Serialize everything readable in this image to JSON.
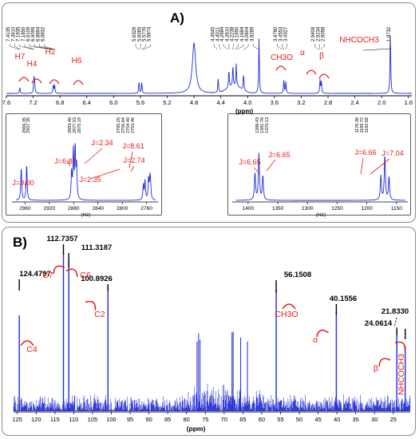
{
  "panel_labels": {
    "A": "A)",
    "B": "B)"
  },
  "colors": {
    "spectrum": "#1f2bd8",
    "annotation": "#e8191b",
    "text": "#000000"
  },
  "chart_data": [
    {
      "id": "A-main",
      "type": "line",
      "title": "A)",
      "xlabel": "(ppm)",
      "xlim": [
        7.6,
        1.55
      ],
      "x_ticks": [
        "7.6",
        "7.2",
        "6.8",
        "6.4",
        "6.0",
        "5.6",
        "5.2",
        "4.8",
        "4.4",
        "4.0",
        "3.6",
        "3.2",
        "2.8",
        "2.4",
        "2.0",
        "1.6"
      ],
      "peak_labels": [
        "7.4135",
        "7.3910",
        "7.1935",
        "7.1850",
        "6.9109",
        "6.9099",
        "6.8894",
        "6.8832",
        "5.6329",
        "5.6065",
        "5.5776",
        "5.5674",
        "4.4545",
        "4.4011",
        "4.2884",
        "4.2610",
        "4.2238",
        "4.1950",
        "4.1684",
        "4.0604",
        "3.8289",
        "3.4780",
        "3.4553",
        "3.4327",
        "2.9409",
        "2.9234",
        "2.9058",
        "1.8732"
      ],
      "peaks": [
        {
          "ppm": 7.4,
          "h": 0.1
        },
        {
          "ppm": 7.19,
          "h": 0.22
        },
        {
          "ppm": 7.18,
          "h": 0.2
        },
        {
          "ppm": 6.9,
          "h": 0.14
        },
        {
          "ppm": 6.88,
          "h": 0.13
        },
        {
          "ppm": 5.62,
          "h": 0.2
        },
        {
          "ppm": 5.58,
          "h": 0.18
        },
        {
          "ppm": 4.8,
          "h": 0.82
        },
        {
          "ppm": 4.44,
          "h": 0.24
        },
        {
          "ppm": 4.28,
          "h": 0.3
        },
        {
          "ppm": 4.22,
          "h": 0.34
        },
        {
          "ppm": 4.17,
          "h": 0.36
        },
        {
          "ppm": 4.06,
          "h": 0.28
        },
        {
          "ppm": 3.83,
          "h": 0.9
        },
        {
          "ppm": 3.46,
          "h": 0.22
        },
        {
          "ppm": 3.43,
          "h": 0.2
        },
        {
          "ppm": 2.92,
          "h": 0.22
        },
        {
          "ppm": 2.9,
          "h": 0.2
        },
        {
          "ppm": 1.87,
          "h": 1.0
        }
      ],
      "annotations": [
        "H7",
        "H4",
        "H2",
        "H6",
        "CH3O",
        "α",
        "β",
        "NHCOCH3"
      ]
    },
    {
      "id": "A-inset-left",
      "type": "line",
      "xlabel": "(Hz)",
      "x_ticks": [
        "2960",
        "2920",
        "2880",
        "2840",
        "2800",
        "2760"
      ],
      "peak_labels": [
        "2966.35",
        "2957.35",
        "2883.40",
        "2877.53",
        "2875.19",
        "2765.25",
        "2756.64",
        "2754.40",
        "2753.46"
      ],
      "annotations": [
        "J=9.00",
        "J=6.87",
        "J=2.34",
        "J=8.61",
        "J=2.35",
        "J=2.74"
      ]
    },
    {
      "id": "A-inset-right",
      "type": "line",
      "xlabel": "(Hz)",
      "x_ticks": [
        "1400",
        "1350",
        "1300",
        "1250",
        "1200",
        "1150"
      ],
      "peak_labels": [
        "1388.43",
        "1381.78",
        "1375.13",
        "1176.38",
        "1169.72",
        "1162.68"
      ],
      "annotations": [
        "J=6.65",
        "J=6.65",
        "J=6.66",
        "J=7.04"
      ]
    },
    {
      "id": "B",
      "type": "line",
      "title": "B)",
      "xlabel": "(ppm)",
      "xlim": [
        126,
        20.5
      ],
      "x_ticks": [
        "125",
        "120",
        "115",
        "110",
        "105",
        "100",
        "95",
        "90",
        "85",
        "80",
        "75",
        "70",
        "65",
        "60",
        "55",
        "50",
        "45",
        "40",
        "35",
        "30",
        "25"
      ],
      "peaks": [
        {
          "ppm": 124.4797,
          "label": "124.4797",
          "name": "C4",
          "h": 0.56
        },
        {
          "ppm": 112.7357,
          "label": "112.7357",
          "name": "C7",
          "h": 0.92
        },
        {
          "ppm": 111.3187,
          "label": "111.3187",
          "name": "C6",
          "h": 0.88
        },
        {
          "ppm": 100.8926,
          "label": "100.8926",
          "name": "C2",
          "h": 0.73
        },
        {
          "ppm": 56.1508,
          "label": "56.1508",
          "name": "CH3O",
          "h": 0.71
        },
        {
          "ppm": 40.1556,
          "label": "40.1556",
          "name": "α",
          "h": 0.58
        },
        {
          "ppm": 24.0614,
          "label": "24.0614",
          "name": "β",
          "h": 0.49
        },
        {
          "ppm": 21.833,
          "label": "21.8330",
          "name": "NHCOCH3",
          "h": 0.38
        }
      ],
      "solvent_peaks_ppm": [
        77.2,
        76.8,
        76.4,
        67.9,
        67.6,
        65.6,
        63.8
      ]
    }
  ]
}
